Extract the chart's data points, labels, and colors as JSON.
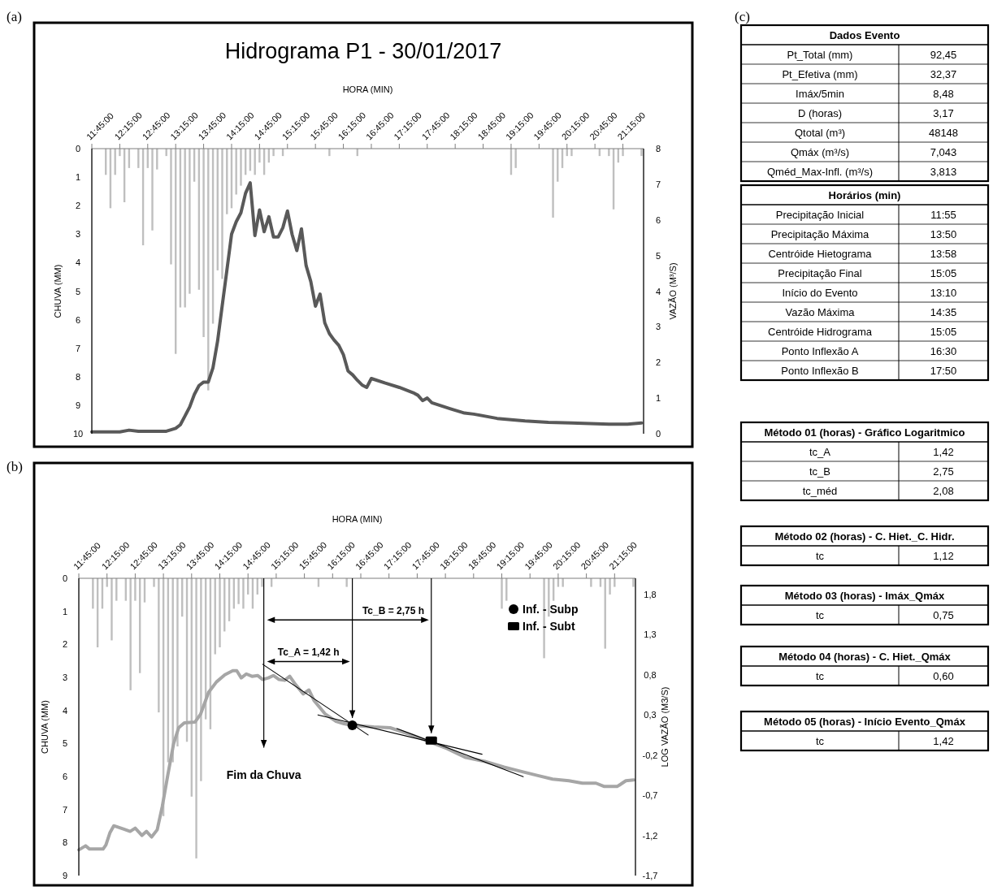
{
  "chart_data": [
    {
      "type": "bar",
      "title": "Hidrograma P1 - 30/01/2017",
      "xlabel": "HORA (MIN)",
      "ylabel": "CHUVA (MM)",
      "y2label": "VAZÃO (M³/S)",
      "annotations": [
        "(a)"
      ],
      "xlim": [
        11.75,
        21.62
      ],
      "xticks": [
        {
          "value": 11.75,
          "label": "11:45:00"
        },
        {
          "value": 12.25,
          "label": "12:15:00"
        },
        {
          "value": 12.75,
          "label": "12:45:00"
        },
        {
          "value": 13.25,
          "label": "13:15:00"
        },
        {
          "value": 13.75,
          "label": "13:45:00"
        },
        {
          "value": 14.25,
          "label": "14:15:00"
        },
        {
          "value": 14.75,
          "label": "14:45:00"
        },
        {
          "value": 15.25,
          "label": "15:15:00"
        },
        {
          "value": 15.75,
          "label": "15:45:00"
        },
        {
          "value": 16.25,
          "label": "16:15:00"
        },
        {
          "value": 16.75,
          "label": "16:45:00"
        },
        {
          "value": 17.25,
          "label": "17:15:00"
        },
        {
          "value": 17.75,
          "label": "17:45:00"
        },
        {
          "value": 18.25,
          "label": "18:15:00"
        },
        {
          "value": 18.75,
          "label": "18:45:00"
        },
        {
          "value": 19.25,
          "label": "19:15:00"
        },
        {
          "value": 19.75,
          "label": "19:45:00"
        },
        {
          "value": 20.25,
          "label": "20:15:00"
        },
        {
          "value": 20.75,
          "label": "20:45:00"
        },
        {
          "value": 21.25,
          "label": "21:15:00"
        }
      ],
      "ylim": [
        10,
        0
      ],
      "yticks": [
        0,
        1,
        2,
        3,
        4,
        5,
        6,
        7,
        8,
        9,
        10
      ],
      "y2lim": [
        0,
        8
      ],
      "y2ticks": [
        0,
        1,
        2,
        3,
        4,
        5,
        6,
        7,
        8
      ],
      "series": [
        {
          "type": "bar",
          "color": "#bfbfbf",
          "x": [
            12.0,
            12.083,
            12.167,
            12.25,
            12.333,
            12.417,
            12.583,
            12.667,
            12.75,
            12.833,
            12.917,
            13.083,
            13.167,
            13.25,
            13.333,
            13.417,
            13.5,
            13.583,
            13.667,
            13.75,
            13.833,
            13.917,
            14.0,
            14.083,
            14.167,
            14.25,
            14.333,
            14.417,
            14.5,
            14.583,
            14.667,
            14.75,
            14.833,
            14.917,
            15.0,
            15.167,
            16.0,
            16.5,
            19.25,
            19.333,
            20.0,
            20.083,
            20.167,
            20.25,
            20.333,
            20.833,
            21.0,
            21.083,
            21.167,
            21.25,
            21.583
          ],
          "values": [
            0.92,
            2.09,
            0.92,
            0.26,
            1.88,
            0.68,
            0.68,
            3.39,
            0.68,
            2.87,
            0.73,
            0.26,
            4.06,
            7.2,
            5.57,
            5.57,
            5.09,
            1.16,
            4.95,
            6.61,
            8.48,
            6.14,
            4.27,
            4.57,
            2.3,
            2.09,
            1.61,
            1.3,
            0.92,
            0.78,
            0.92,
            0.49,
            0.92,
            0.49,
            0.26,
            0.26,
            0.26,
            0.26,
            0.92,
            0.68,
            2.42,
            1.16,
            0.68,
            0.26,
            0.26,
            0.26,
            0.26,
            2.13,
            0.49,
            0.26,
            0.26
          ]
        },
        {
          "type": "line",
          "axis": "y2",
          "color": "#595959",
          "x": [
            11.75,
            12.25,
            12.417,
            12.583,
            13.083,
            13.25,
            13.333,
            13.417,
            13.5,
            13.583,
            13.667,
            13.75,
            13.833,
            13.917,
            14.0,
            14.083,
            14.167,
            14.25,
            14.333,
            14.417,
            14.5,
            14.583,
            14.667,
            14.75,
            14.833,
            14.917,
            15.0,
            15.083,
            15.167,
            15.25,
            15.333,
            15.417,
            15.5,
            15.583,
            15.667,
            15.75,
            15.833,
            15.917,
            16.0,
            16.083,
            16.167,
            16.25,
            16.333,
            16.417,
            16.5,
            16.583,
            16.667,
            16.75,
            17.0,
            17.25,
            17.5,
            17.583,
            17.667,
            17.75,
            17.833,
            18.167,
            18.417,
            18.583,
            19.0,
            19.5,
            19.917,
            20.333,
            21.0,
            21.333,
            21.583
          ],
          "values": [
            0.05,
            0.05,
            0.1,
            0.07,
            0.07,
            0.15,
            0.25,
            0.5,
            0.75,
            1.1,
            1.35,
            1.45,
            1.45,
            1.85,
            2.6,
            3.6,
            4.6,
            5.6,
            5.95,
            6.2,
            6.75,
            7.04,
            5.56,
            6.28,
            5.67,
            6.09,
            5.52,
            5.52,
            5.78,
            6.25,
            5.59,
            5.14,
            5.75,
            4.72,
            4.27,
            3.58,
            3.92,
            3.11,
            2.81,
            2.63,
            2.48,
            2.22,
            1.76,
            1.65,
            1.5,
            1.37,
            1.3,
            1.55,
            1.42,
            1.3,
            1.15,
            1.08,
            0.93,
            1.0,
            0.87,
            0.7,
            0.58,
            0.55,
            0.43,
            0.36,
            0.32,
            0.3,
            0.27,
            0.27,
            0.3
          ]
        }
      ]
    },
    {
      "type": "bar",
      "xlabel": "HORA (MIN)",
      "ylabel": "CHUVA (MM)",
      "y2label": "LOG VAZÃO (M3/S)",
      "annotations": [
        "(b)",
        "Tc_A = 1,42 h",
        "Tc_B = 2,75 h"
      ],
      "legend": "top right",
      "xlim": [
        11.75,
        21.62
      ],
      "xticks": [
        {
          "value": 11.75,
          "label": "11:45:00"
        },
        {
          "value": 12.25,
          "label": "12:15:00"
        },
        {
          "value": 12.75,
          "label": "12:45:00"
        },
        {
          "value": 13.25,
          "label": "13:15:00"
        },
        {
          "value": 13.75,
          "label": "13:45:00"
        },
        {
          "value": 14.25,
          "label": "14:15:00"
        },
        {
          "value": 14.75,
          "label": "14:45:00"
        },
        {
          "value": 15.25,
          "label": "15:15:00"
        },
        {
          "value": 15.75,
          "label": "15:45:00"
        },
        {
          "value": 16.25,
          "label": "16:15:00"
        },
        {
          "value": 16.75,
          "label": "16:45:00"
        },
        {
          "value": 17.25,
          "label": "17:15:00"
        },
        {
          "value": 17.75,
          "label": "17:45:00"
        },
        {
          "value": 18.25,
          "label": "18:15:00"
        },
        {
          "value": 18.75,
          "label": "18:45:00"
        },
        {
          "value": 19.25,
          "label": "19:15:00"
        },
        {
          "value": 19.75,
          "label": "19:45:00"
        },
        {
          "value": 20.25,
          "label": "20:15:00"
        },
        {
          "value": 20.75,
          "label": "20:45:00"
        },
        {
          "value": 21.25,
          "label": "21:15:00"
        }
      ],
      "ylim": [
        9,
        0
      ],
      "yticks": [
        0,
        1,
        2,
        3,
        4,
        5,
        6,
        7,
        8,
        9
      ],
      "y2lim": [
        -1.7,
        2.0
      ],
      "y2ticks": [
        {
          "value": -1.7,
          "label": "-1,7"
        },
        {
          "value": -1.2,
          "label": "-1,2"
        },
        {
          "value": -0.7,
          "label": "-0,7"
        },
        {
          "value": -0.2,
          "label": "-0,2"
        },
        {
          "value": 0.3,
          "label": "0,3"
        },
        {
          "value": 0.8,
          "label": "0,8"
        },
        {
          "value": 1.3,
          "label": "1,3"
        },
        {
          "value": 1.8,
          "label": "1,8"
        }
      ],
      "ref_lines": [
        {
          "axis": "x",
          "value": 15.03,
          "label": "Fim da Chuva",
          "color": "#000000"
        },
        {
          "axis": "x",
          "value": 16.6,
          "label": null,
          "color": "#000000"
        },
        {
          "axis": "x",
          "value": 18.0,
          "label": null,
          "color": "#000000"
        }
      ],
      "series": [
        {
          "type": "bar",
          "color": "#bfbfbf",
          "x": [
            12.0,
            12.083,
            12.167,
            12.25,
            12.333,
            12.417,
            12.583,
            12.667,
            12.75,
            12.833,
            12.917,
            13.083,
            13.167,
            13.25,
            13.333,
            13.417,
            13.5,
            13.583,
            13.667,
            13.75,
            13.833,
            13.917,
            14.0,
            14.083,
            14.167,
            14.25,
            14.333,
            14.417,
            14.5,
            14.583,
            14.667,
            14.75,
            14.833,
            14.917,
            15.0,
            15.167,
            16.0,
            16.5,
            19.25,
            19.333,
            20.0,
            20.083,
            20.167,
            20.25,
            20.333,
            20.833,
            21.0,
            21.083,
            21.167,
            21.25,
            21.583
          ],
          "values": [
            0.92,
            2.09,
            0.92,
            0.26,
            1.88,
            0.68,
            0.68,
            3.39,
            0.68,
            2.87,
            0.73,
            0.26,
            4.06,
            7.2,
            5.57,
            5.57,
            5.09,
            1.16,
            4.95,
            6.61,
            8.48,
            6.14,
            4.27,
            4.57,
            2.3,
            2.09,
            1.61,
            1.3,
            0.92,
            0.78,
            0.92,
            0.49,
            0.92,
            0.49,
            0.26,
            0.26,
            0.26,
            0.26,
            0.92,
            0.68,
            2.42,
            1.16,
            0.68,
            0.26,
            0.26,
            0.26,
            0.26,
            2.13,
            0.49,
            0.26,
            0.26
          ]
        },
        {
          "type": "line",
          "axis": "y2",
          "color": "#a6a6a6",
          "x": [
            11.75,
            11.87,
            11.94,
            12.18,
            12.23,
            12.3,
            12.37,
            12.54,
            12.66,
            12.75,
            12.87,
            12.95,
            13.04,
            13.14,
            13.23,
            13.33,
            13.43,
            13.52,
            13.62,
            13.81,
            13.91,
            14.05,
            14.19,
            14.34,
            14.48,
            14.55,
            14.63,
            14.72,
            14.82,
            14.92,
            15.01,
            15.11,
            15.2,
            15.3,
            15.4,
            15.49,
            15.59,
            15.73,
            15.83,
            15.92,
            16.12,
            16.31,
            16.45,
            16.6,
            16.79,
            16.98,
            17.27,
            17.65,
            18.28,
            18.61,
            18.95,
            19.29,
            19.57,
            19.86,
            20.15,
            20.44,
            20.68,
            20.92,
            21.06,
            21.3,
            21.45,
            21.59
          ],
          "values": [
            -1.38,
            -1.33,
            -1.37,
            -1.37,
            -1.32,
            -1.17,
            -1.08,
            -1.12,
            -1.15,
            -1.11,
            -1.2,
            -1.15,
            -1.22,
            -1.13,
            -0.84,
            -0.44,
            -0.06,
            0.14,
            0.2,
            0.21,
            0.31,
            0.58,
            0.71,
            0.8,
            0.85,
            0.85,
            0.76,
            0.81,
            0.78,
            0.79,
            0.74,
            0.76,
            0.79,
            0.74,
            0.73,
            0.78,
            0.68,
            0.56,
            0.61,
            0.48,
            0.31,
            0.22,
            0.19,
            0.17,
            0.16,
            0.15,
            0.14,
            0.05,
            -0.12,
            -0.23,
            -0.28,
            -0.35,
            -0.4,
            -0.45,
            -0.5,
            -0.52,
            -0.55,
            -0.55,
            -0.59,
            -0.59,
            -0.52,
            -0.51
          ]
        },
        {
          "type": "line",
          "axis": "y2",
          "color": "#000000",
          "x": [
            15.01,
            16.88
          ],
          "values": [
            0.93,
            0.05
          ]
        },
        {
          "type": "line",
          "axis": "y2",
          "color": "#000000",
          "x": [
            15.99,
            18.9
          ],
          "values": [
            0.3,
            -0.19
          ]
        },
        {
          "type": "line",
          "axis": "y2",
          "color": "#000000",
          "x": [
            17.39,
            19.63
          ],
          "values": [
            0.13,
            -0.47
          ]
        },
        {
          "type": "scatter",
          "axis": "y2",
          "name": "Inf. - Subp",
          "marker": "circle",
          "color": "#000000",
          "x": [
            16.6
          ],
          "values": [
            0.17
          ]
        },
        {
          "type": "scatter",
          "axis": "y2",
          "name": "Inf. - Subt",
          "marker": "square",
          "color": "#000000",
          "x": [
            18.0
          ],
          "values": [
            -0.02
          ]
        }
      ]
    },
    {
      "type": "other",
      "title": "Dados Evento",
      "annotations": [
        "(c)"
      ],
      "categories": [
        "Pt_Total (mm)",
        "Pt_Efetiva (mm)",
        "Imáx/5min",
        "D (horas)",
        "Qtotal (m³)",
        "Qmáx (m³/s)",
        "Qméd_Max-Infl. (m³/s)"
      ],
      "value_labels": [
        "92,45",
        "32,37",
        "8,48",
        "3,17",
        "48148",
        "7,043",
        "3,813"
      ]
    },
    {
      "type": "other",
      "title": "Horários (min)",
      "categories": [
        "Precipitação Inicial",
        "Precipitação Máxima",
        "Centróide Hietograma",
        "Precipitação Final",
        "Início do Evento",
        "Vazão Máxima",
        "Centróide Hidrograma",
        "Ponto Inflexão A",
        "Ponto Inflexão B"
      ],
      "value_labels": [
        "11:55",
        "13:50",
        "13:58",
        "15:05",
        "13:10",
        "14:35",
        "15:05",
        "16:30",
        "17:50"
      ]
    },
    {
      "type": "other",
      "title": "Método 01 (horas) - Gráfico Logaritmico",
      "categories": [
        "tc_A",
        "tc_B",
        "tc_méd"
      ],
      "value_labels": [
        "1,42",
        "2,75",
        "2,08"
      ]
    },
    {
      "type": "other",
      "title": "Método 02 (horas) - C. Hiet._C. Hidr.",
      "categories": [
        "tc"
      ],
      "value_labels": [
        "1,12"
      ]
    },
    {
      "type": "other",
      "title": "Método 03 (horas) - Imáx_Qmáx",
      "categories": [
        "tc"
      ],
      "value_labels": [
        "0,75"
      ]
    },
    {
      "type": "other",
      "title": "Método 04 (horas) - C. Hiet._Qmáx",
      "categories": [
        "tc"
      ],
      "value_labels": [
        "0,60"
      ]
    },
    {
      "type": "other",
      "title": "Método 05 (horas) - Início Evento_Qmáx",
      "categories": [
        "tc"
      ],
      "value_labels": [
        "1,42"
      ]
    }
  ]
}
